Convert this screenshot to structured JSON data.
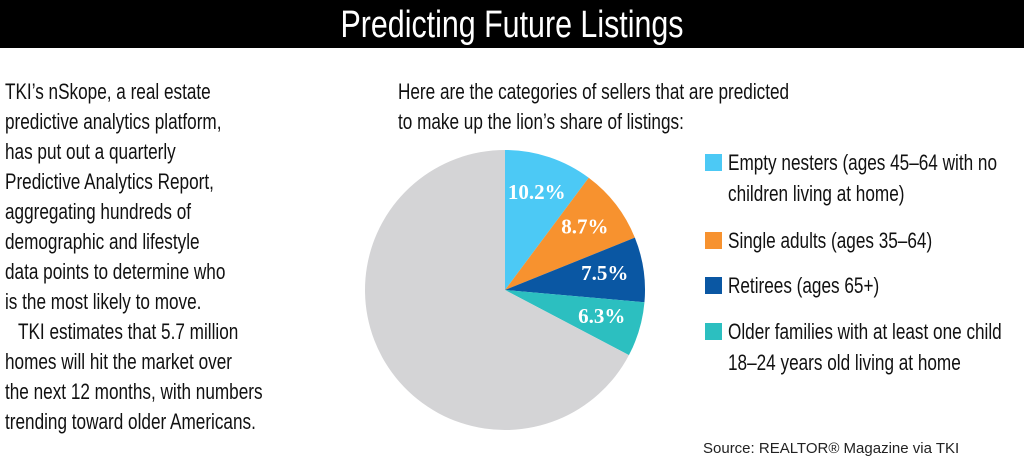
{
  "header": {
    "title": "Predicting Future Listings"
  },
  "body": {
    "paragraphs": [
      {
        "lines": [
          "TKI’s nSkope, a real estate",
          "predictive analytics platform,",
          "has put out a quarterly",
          "Predictive Analytics Report,",
          "aggregating hundreds of",
          "demographic and lifestyle",
          "data points to determine who",
          "is the most likely to move."
        ]
      },
      {
        "lines": [
          "TKI estimates that 5.7 million",
          "homes will hit the market over",
          "the next 12 months, with numbers",
          "trending toward older Americans."
        ]
      }
    ]
  },
  "chart_data": {
    "type": "pie",
    "subtitle_lines": [
      "Here are the categories of sellers that are predicted",
      "to make up the lion’s share of listings:"
    ],
    "categories": [
      "Empty nesters (ages 45–64 with no children living at home)",
      "Single adults (ages 35–64)",
      "Retirees (ages 65+)",
      "Older families with at least one child 18–24 years old living at home",
      null
    ],
    "values": [
      10.2,
      8.7,
      7.5,
      6.3,
      67.3
    ],
    "value_labels": [
      "10.2%",
      "8.7%",
      "7.5%",
      "6.3%",
      null
    ],
    "colors": [
      "#4cc9f5",
      "#f7922f",
      "#0a57a3",
      "#2cbfc0",
      "#d4d4d6"
    ]
  },
  "source": "Source: REALTOR® Magazine via TKI"
}
